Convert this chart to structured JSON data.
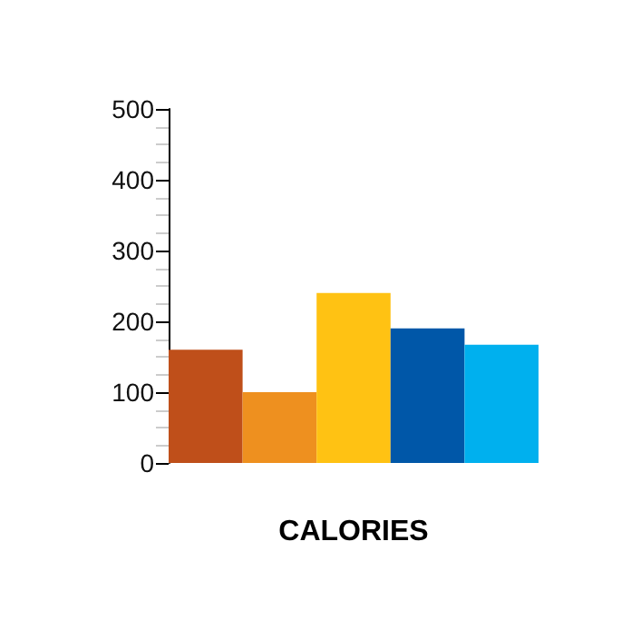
{
  "chart_data": {
    "type": "bar",
    "xlabel": "CALORIES",
    "categories": [
      null,
      null,
      null,
      null,
      null
    ],
    "values": [
      160,
      100,
      240,
      190,
      167
    ],
    "colors": [
      "#bf4f1a",
      "#ee901f",
      "#ffc213",
      "#0057a8",
      "#00b0ee"
    ],
    "ylim": [
      0,
      500
    ],
    "yticks": [
      0,
      {
        "value": 25,
        "label": null
      },
      {
        "value": 50,
        "label": null
      },
      {
        "value": 75,
        "label": null
      },
      100,
      {
        "value": 125,
        "label": null
      },
      {
        "value": 150,
        "label": null
      },
      {
        "value": 175,
        "label": null
      },
      200,
      {
        "value": 225,
        "label": null
      },
      {
        "value": 250,
        "label": null
      },
      {
        "value": 275,
        "label": null
      },
      300,
      {
        "value": 325,
        "label": null
      },
      {
        "value": 350,
        "label": null
      },
      {
        "value": 375,
        "label": null
      },
      400,
      {
        "value": 425,
        "label": null
      },
      {
        "value": 450,
        "label": null
      },
      {
        "value": 475,
        "label": null
      },
      500
    ],
    "grid": false
  }
}
